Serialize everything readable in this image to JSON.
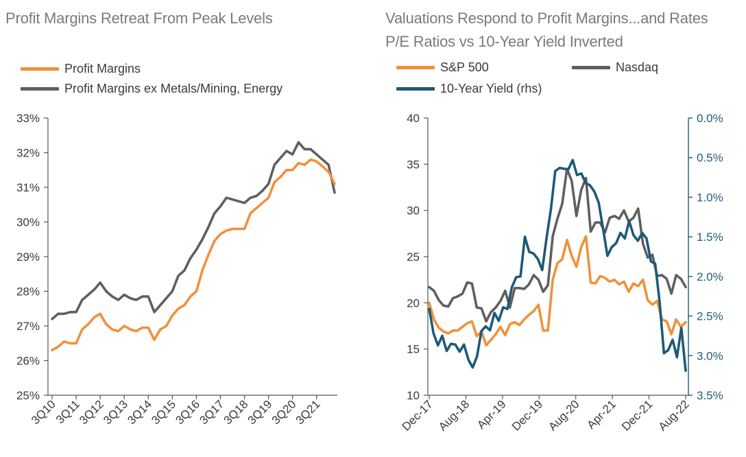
{
  "colors": {
    "orange": "#f0913a",
    "gray": "#5f5f5f",
    "blue": "#1c5a78",
    "title": "#7a7a7a",
    "text": "#3a3a3a"
  },
  "chart_data": [
    {
      "type": "line",
      "title": "Profit Margins Retreat From Peak Levels",
      "xlabel": "",
      "ylabel": "",
      "ylim": [
        25,
        33
      ],
      "yticks": [
        "25%",
        "26%",
        "27%",
        "28%",
        "29%",
        "30%",
        "31%",
        "32%",
        "33%"
      ],
      "xticks": [
        "3Q10",
        "3Q11",
        "3Q12",
        "3Q13",
        "3Q14",
        "3Q15",
        "3Q16",
        "3Q17",
        "3Q18",
        "3Q19",
        "3Q20",
        "3Q21"
      ],
      "x": [
        "3Q10",
        "4Q10",
        "1Q11",
        "2Q11",
        "3Q11",
        "4Q11",
        "1Q12",
        "2Q12",
        "3Q12",
        "4Q12",
        "1Q13",
        "2Q13",
        "3Q13",
        "4Q13",
        "1Q14",
        "2Q14",
        "3Q14",
        "4Q14",
        "1Q15",
        "2Q15",
        "3Q15",
        "4Q15",
        "1Q16",
        "2Q16",
        "3Q16",
        "4Q16",
        "1Q17",
        "2Q17",
        "3Q17",
        "4Q17",
        "1Q18",
        "2Q18",
        "3Q18",
        "4Q18",
        "1Q19",
        "2Q19",
        "3Q19",
        "4Q19",
        "1Q20",
        "2Q20",
        "3Q20",
        "4Q20",
        "1Q21",
        "2Q21",
        "3Q21",
        "4Q21",
        "1Q22",
        "2Q22"
      ],
      "legend_position": "top-left",
      "grid": false,
      "series": [
        {
          "name": "Profit Margins",
          "color": "#f0913a",
          "values": [
            26.3,
            26.4,
            26.55,
            26.5,
            26.5,
            26.9,
            27.05,
            27.25,
            27.35,
            27.05,
            26.9,
            26.85,
            27.0,
            26.9,
            26.85,
            26.95,
            26.95,
            26.6,
            26.9,
            27.0,
            27.3,
            27.5,
            27.6,
            27.85,
            28.0,
            28.6,
            29.05,
            29.45,
            29.65,
            29.75,
            29.8,
            29.8,
            29.8,
            30.25,
            30.4,
            30.55,
            30.7,
            31.15,
            31.3,
            31.5,
            31.5,
            31.7,
            31.65,
            31.8,
            31.75,
            31.6,
            31.45,
            31.1
          ]
        },
        {
          "name": "Profit Margins ex Metals/Mining, Energy",
          "color": "#5f5f5f",
          "values": [
            27.2,
            27.35,
            27.35,
            27.4,
            27.4,
            27.75,
            27.9,
            28.05,
            28.25,
            28.0,
            27.85,
            27.75,
            27.9,
            27.8,
            27.75,
            27.85,
            27.85,
            27.4,
            27.6,
            27.8,
            28.0,
            28.45,
            28.6,
            28.95,
            29.2,
            29.5,
            29.85,
            30.25,
            30.45,
            30.7,
            30.65,
            30.6,
            30.55,
            30.7,
            30.75,
            30.9,
            31.1,
            31.65,
            31.85,
            32.05,
            31.95,
            32.3,
            32.1,
            32.1,
            31.95,
            31.8,
            31.65,
            30.85
          ]
        }
      ]
    },
    {
      "type": "line",
      "title": "Valuations Respond to Profit Margins...and Rates",
      "subtitle": "P/E Ratios vs 10-Year Yield Inverted",
      "xlabel": "",
      "ylabel": "",
      "ylim": [
        10,
        40
      ],
      "yticks": [
        "10",
        "15",
        "20",
        "25",
        "30",
        "35",
        "40"
      ],
      "y2lim": [
        0.0,
        3.5
      ],
      "y2_inverted": true,
      "y2ticks": [
        "0.0%",
        "0.5%",
        "1.0%",
        "1.5%",
        "2.0%",
        "2.5%",
        "3.0%",
        "3.5%"
      ],
      "xticks": [
        "Dec-17",
        "Aug-18",
        "Apr-19",
        "Dec-19",
        "Aug-20",
        "Apr-21",
        "Dec-21",
        "Aug-22"
      ],
      "x_start": "Dec-17",
      "x_end": "Aug-22",
      "legend_position": "top",
      "grid": false,
      "series": [
        {
          "name": "S&P 500",
          "axis": "left",
          "color": "#f0913a",
          "values": [
            20.0,
            18.2,
            17.3,
            16.9,
            16.7,
            17.0,
            17.0,
            17.4,
            17.8,
            18.0,
            16.4,
            16.9,
            15.4,
            16.0,
            16.6,
            17.4,
            16.5,
            17.7,
            17.9,
            17.6,
            18.2,
            18.7,
            19.1,
            19.8,
            17.0,
            17.0,
            22.5,
            24.3,
            24.7,
            26.8,
            25.1,
            23.9,
            26.0,
            27.2,
            22.2,
            22.1,
            22.9,
            22.7,
            22.3,
            22.5,
            22.0,
            22.3,
            21.2,
            22.1,
            21.8,
            22.5,
            20.3,
            19.8,
            20.2,
            18.2,
            18.0,
            16.6,
            18.2,
            17.4,
            17.9
          ]
        },
        {
          "name": "Nasdaq",
          "axis": "left",
          "color": "#5f5f5f",
          "values": [
            21.7,
            21.3,
            20.3,
            19.7,
            19.6,
            20.5,
            20.7,
            21.0,
            22.2,
            22.1,
            19.5,
            19.4,
            18.0,
            19.0,
            19.5,
            20.2,
            21.3,
            19.5,
            21.6,
            21.6,
            21.5,
            22.0,
            23.0,
            22.5,
            21.2,
            21.9,
            27.2,
            29.1,
            30.7,
            34.5,
            33.2,
            29.4,
            32.2,
            33.5,
            27.7,
            28.7,
            28.7,
            27.6,
            29.2,
            29.4,
            29.1,
            30.0,
            28.8,
            29.2,
            30.2,
            26.4,
            24.9,
            25.2,
            22.9,
            23.0,
            22.6,
            21.0,
            23.0,
            22.6,
            21.7
          ]
        },
        {
          "name": "10-Year Yield (rhs)",
          "axis": "right",
          "color": "#1c5a78",
          "values": [
            2.41,
            2.72,
            2.87,
            2.75,
            2.94,
            2.85,
            2.86,
            2.95,
            2.86,
            3.05,
            3.15,
            3.01,
            2.69,
            2.63,
            2.68,
            2.46,
            2.56,
            2.39,
            2.41,
            2.14,
            2.01,
            2.0,
            1.5,
            1.69,
            1.71,
            1.78,
            1.92,
            1.51,
            1.15,
            0.67,
            0.63,
            0.64,
            0.65,
            0.53,
            0.72,
            0.7,
            0.82,
            0.85,
            0.93,
            1.07,
            1.4,
            1.74,
            1.63,
            1.58,
            1.45,
            1.52,
            1.3,
            1.48,
            1.55,
            1.45,
            1.52,
            1.81,
            1.84,
            2.32,
            2.97,
            2.93,
            2.8,
            3.02,
            2.65,
            3.19
          ]
        }
      ]
    }
  ]
}
